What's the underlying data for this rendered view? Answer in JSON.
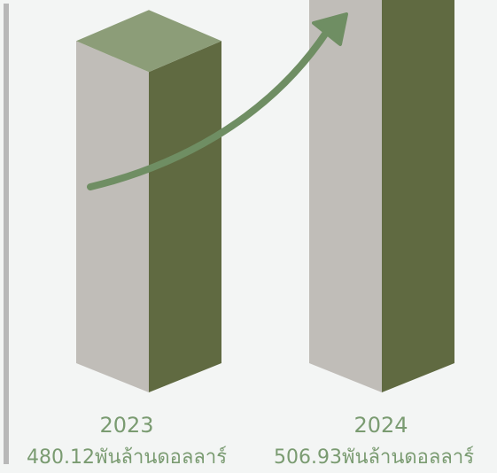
{
  "chart_data": {
    "type": "bar",
    "title": "",
    "xlabel": "",
    "ylabel": "",
    "categories": [
      "2023",
      "2024"
    ],
    "values": [
      480.12,
      506.93
    ],
    "value_labels": [
      "480.12พันล้านดอลลาร์",
      "506.93พันล้านดอลลาร์"
    ],
    "ylim": [
      420,
      520
    ],
    "grid": false,
    "legend": "none",
    "trend_arrow": "up"
  },
  "colors": {
    "background": "#f3f5f4",
    "bar_front": "#c0bdb8",
    "bar_side": "#606a41",
    "bar_top": "#8c9d78",
    "arrow": "#6f8e63",
    "label_text": "#7a9b71",
    "axis_line": "#b8b8b8"
  }
}
